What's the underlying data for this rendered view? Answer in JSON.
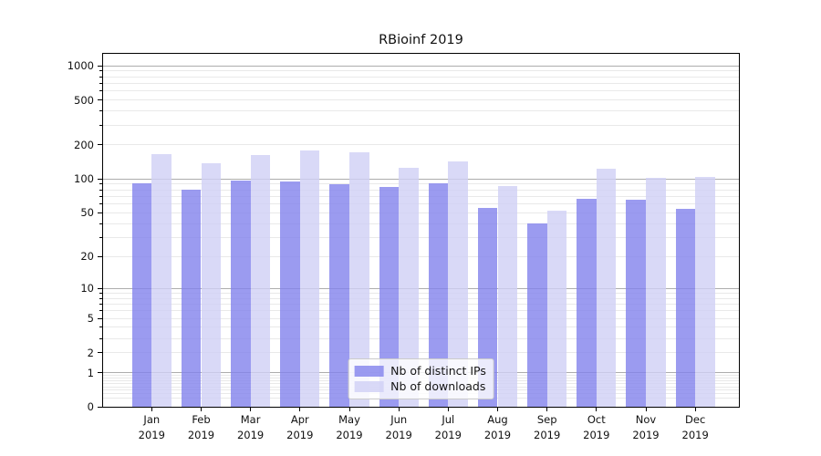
{
  "figure": {
    "background": "#ffffff"
  },
  "chart_data": {
    "type": "bar",
    "title": "RBioinf 2019",
    "categories": [
      "Jan",
      "Feb",
      "Mar",
      "Apr",
      "May",
      "Jun",
      "Jul",
      "Aug",
      "Sep",
      "Oct",
      "Nov",
      "Dec"
    ],
    "year_label": "2019",
    "series": [
      {
        "name": "Nb of distinct IPs",
        "color": "rgba(130,130,236,0.8)",
        "values": [
          92,
          80,
          97,
          95,
          90,
          85,
          92,
          55,
          40,
          66,
          65,
          54
        ]
      },
      {
        "name": "Nb of downloads",
        "color": "rgba(208,208,245,0.8)",
        "values": [
          166,
          138,
          163,
          179,
          173,
          125,
          144,
          87,
          52,
          124,
          102,
          104
        ]
      }
    ],
    "xlabel": "",
    "ylabel": "",
    "yscale": "log1p",
    "ylim": [
      0,
      1290
    ],
    "y_ticks": [
      0,
      1,
      2,
      5,
      10,
      20,
      50,
      100,
      200,
      500,
      1000
    ],
    "y_major_ticks": [
      1,
      10,
      100,
      1000
    ],
    "grid": "on",
    "legend_position": "lower center",
    "colors": {
      "major_grid": "rgba(0,0,0,0.32)",
      "minor_grid": "rgba(0,0,0,0.085)",
      "axis": "#000000",
      "legend_border": "#cbcbcb",
      "background": "#ffffff"
    }
  }
}
